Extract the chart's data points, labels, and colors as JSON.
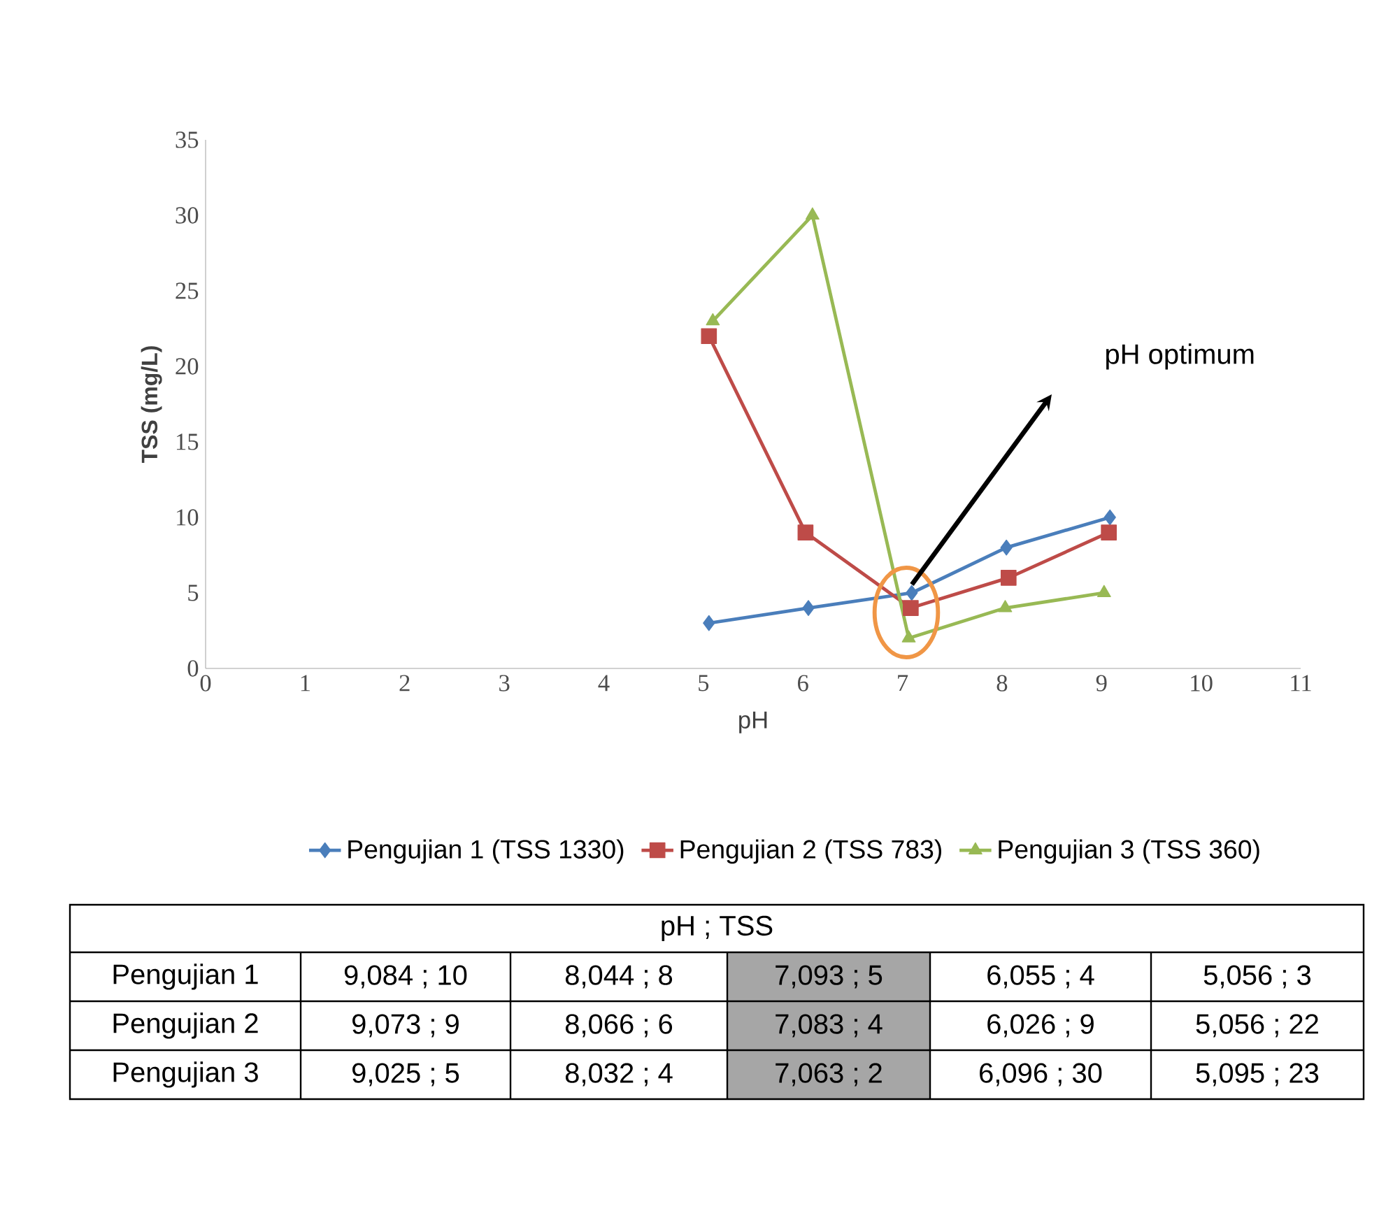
{
  "chart_data": {
    "type": "line",
    "xlabel": "pH",
    "ylabel": "TSS (mg/L)",
    "xlim": [
      0,
      11
    ],
    "ylim": [
      0,
      35
    ],
    "xticks": [
      0,
      1,
      2,
      3,
      4,
      5,
      6,
      7,
      8,
      9,
      10,
      11
    ],
    "yticks": [
      0,
      5,
      10,
      15,
      20,
      25,
      30,
      35
    ],
    "legend": "bottom",
    "line_style": "solid",
    "series": [
      {
        "name": "Pengujian 1 (TSS 1330)",
        "color": "#4a7ebb",
        "marker": "diamond",
        "x": [
          9.084,
          8.044,
          7.093,
          6.055,
          5.056
        ],
        "values": [
          10,
          8,
          5,
          4,
          3
        ]
      },
      {
        "name": "Pengujian 2 (TSS 783)",
        "color": "#be4b48",
        "marker": "square",
        "x": [
          9.073,
          8.066,
          7.083,
          6.026,
          5.056
        ],
        "values": [
          9,
          6,
          4,
          9,
          22
        ]
      },
      {
        "name": "Pengujian 3 (TSS 360)",
        "color": "#98b954",
        "marker": "triangle",
        "x": [
          9.025,
          8.032,
          7.063,
          6.096,
          5.095
        ],
        "values": [
          5,
          4,
          2,
          30,
          23
        ]
      }
    ],
    "annotations": [
      "pH optimum",
      "pH ; TSS",
      "Pengujian 1",
      "9,084 ; 10",
      "8,044 ; 8",
      "7,093 ; 5",
      "6,055 ; 4",
      "5,056 ; 3",
      "Pengujian 2",
      "9,073 ; 9",
      "8,066 ; 6",
      "7,083 ; 4",
      "6,026 ; 9",
      "5,056 ; 22",
      "Pengujian 3",
      "9,025 ; 5",
      "8,032 ; 4",
      "7,063 ; 2",
      "6,096 ; 30",
      "5,095 ; 23"
    ]
  }
}
